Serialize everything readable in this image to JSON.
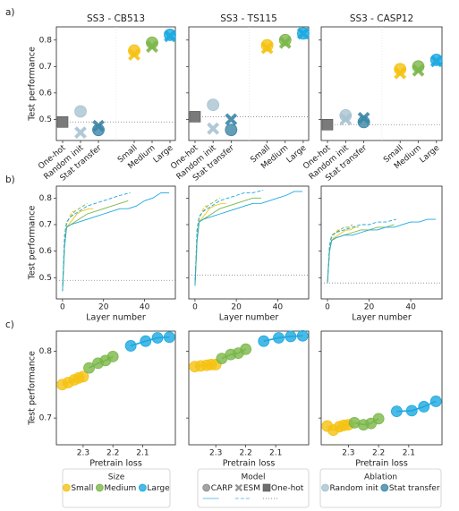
{
  "panel_labels": [
    "a)",
    "b)",
    "c)"
  ],
  "chart_data": [
    {
      "type": "scatter",
      "title": "SS3 - CB513",
      "ylabel": "Test performance",
      "categories": [
        "One-hot",
        "Random init",
        "Stat transfer",
        "Small",
        "Medium",
        "Large"
      ],
      "category_colors": [
        "#7a7a7a",
        "#a7c3d1",
        "#3b86a6",
        "#f5c211",
        "#7ab648",
        "#1ba8e0"
      ],
      "series": [
        {
          "marker": "square",
          "values": [
            0.49,
            null,
            null,
            null,
            null,
            null
          ]
        },
        {
          "marker": "circle",
          "values": [
            null,
            0.53,
            0.46,
            0.76,
            0.79,
            0.82
          ]
        },
        {
          "marker": "x",
          "values": [
            null,
            0.45,
            0.475,
            0.745,
            0.775,
            0.815
          ]
        }
      ],
      "ylim": [
        0.42,
        0.85
      ],
      "yticks": [
        0.5,
        0.6,
        0.7,
        0.8
      ]
    },
    {
      "type": "scatter",
      "title": "SS3 - TS115",
      "categories": [
        "One-hot",
        "Random init",
        "Stat transfer",
        "Small",
        "Medium",
        "Large"
      ],
      "category_colors": [
        "#7a7a7a",
        "#a7c3d1",
        "#3b86a6",
        "#f5c211",
        "#7ab648",
        "#1ba8e0"
      ],
      "series": [
        {
          "marker": "square",
          "values": [
            0.51,
            null,
            null,
            null,
            null,
            null
          ]
        },
        {
          "marker": "circle",
          "values": [
            null,
            0.555,
            0.46,
            0.78,
            0.8,
            0.825
          ]
        },
        {
          "marker": "x",
          "values": [
            null,
            0.465,
            0.5,
            0.77,
            0.79,
            0.825
          ]
        }
      ]
    },
    {
      "type": "scatter",
      "title": "SS3 - CASP12",
      "categories": [
        "One-hot",
        "Random init",
        "Stat transfer",
        "Small",
        "Medium",
        "Large"
      ],
      "category_colors": [
        "#7a7a7a",
        "#a7c3d1",
        "#3b86a6",
        "#f5c211",
        "#7ab648",
        "#1ba8e0"
      ],
      "series": [
        {
          "marker": "square",
          "values": [
            0.48,
            null,
            null,
            null,
            null,
            null
          ]
        },
        {
          "marker": "circle",
          "values": [
            null,
            0.515,
            0.49,
            0.69,
            0.7,
            0.725
          ]
        },
        {
          "marker": "x",
          "values": [
            null,
            0.5,
            0.505,
            0.675,
            0.685,
            0.72
          ]
        }
      ]
    },
    {
      "type": "line",
      "ylabel": "Test performance",
      "xlabel": "Layer number",
      "xlim": [
        -3,
        55
      ],
      "xticks": [
        0,
        20,
        40
      ],
      "ylim": [
        0.42,
        0.845
      ],
      "yticks": [
        0.5,
        0.6,
        0.7,
        0.8
      ],
      "series": [
        {
          "color": "#f5c211",
          "style": "solid",
          "x": [
            0,
            1,
            2,
            3,
            5,
            7,
            9,
            11,
            13,
            15
          ],
          "values": [
            0.45,
            0.62,
            0.69,
            0.7,
            0.72,
            0.74,
            0.75,
            0.755,
            0.76,
            0.76
          ]
        },
        {
          "color": "#7ab648",
          "style": "solid",
          "x": [
            0,
            1,
            2,
            4,
            8,
            12,
            16,
            20,
            24,
            28,
            32
          ],
          "values": [
            0.45,
            0.62,
            0.69,
            0.7,
            0.72,
            0.74,
            0.75,
            0.76,
            0.77,
            0.78,
            0.79
          ]
        },
        {
          "color": "#1ba8e0",
          "style": "solid",
          "x": [
            0,
            1,
            2,
            4,
            8,
            12,
            16,
            20,
            24,
            28,
            32,
            36,
            40,
            44,
            48,
            52
          ],
          "values": [
            0.45,
            0.62,
            0.69,
            0.7,
            0.71,
            0.72,
            0.73,
            0.74,
            0.75,
            0.76,
            0.76,
            0.77,
            0.79,
            0.8,
            0.82,
            0.82
          ]
        },
        {
          "color": "#f5c211",
          "style": "dashed",
          "x": [
            0,
            1,
            2,
            3,
            4,
            5,
            6
          ],
          "values": [
            0.45,
            0.65,
            0.7,
            0.72,
            0.74,
            0.75,
            0.75
          ]
        },
        {
          "color": "#7ab648",
          "style": "dashed",
          "x": [
            0,
            1,
            2,
            4,
            6,
            8,
            10,
            12
          ],
          "values": [
            0.45,
            0.66,
            0.71,
            0.73,
            0.75,
            0.76,
            0.77,
            0.78
          ]
        },
        {
          "color": "#1ba8e0",
          "style": "dashed",
          "x": [
            0,
            1,
            2,
            4,
            8,
            12,
            16,
            20,
            24,
            28,
            33
          ],
          "values": [
            0.45,
            0.66,
            0.71,
            0.73,
            0.75,
            0.77,
            0.78,
            0.79,
            0.8,
            0.81,
            0.82
          ]
        }
      ]
    },
    {
      "type": "line",
      "xlabel": "Layer number",
      "xlim": [
        -3,
        55
      ],
      "xticks": [
        0,
        20,
        40
      ],
      "series": [
        {
          "color": "#f5c211",
          "style": "solid",
          "x": [
            0,
            1,
            2,
            3,
            5,
            7,
            9,
            11,
            13,
            15
          ],
          "values": [
            0.47,
            0.64,
            0.71,
            0.72,
            0.74,
            0.76,
            0.77,
            0.775,
            0.78,
            0.78
          ]
        },
        {
          "color": "#7ab648",
          "style": "solid",
          "x": [
            0,
            1,
            2,
            4,
            8,
            12,
            16,
            20,
            24,
            28,
            32
          ],
          "values": [
            0.47,
            0.64,
            0.71,
            0.72,
            0.74,
            0.76,
            0.77,
            0.78,
            0.79,
            0.8,
            0.8
          ]
        },
        {
          "color": "#1ba8e0",
          "style": "solid",
          "x": [
            0,
            1,
            2,
            4,
            8,
            12,
            16,
            20,
            24,
            28,
            32,
            36,
            40,
            44,
            48,
            52
          ],
          "values": [
            0.47,
            0.64,
            0.71,
            0.72,
            0.73,
            0.74,
            0.75,
            0.76,
            0.77,
            0.78,
            0.78,
            0.79,
            0.8,
            0.81,
            0.825,
            0.825
          ]
        },
        {
          "color": "#f5c211",
          "style": "dashed",
          "x": [
            0,
            1,
            2,
            3,
            4,
            5,
            6
          ],
          "values": [
            0.47,
            0.67,
            0.72,
            0.74,
            0.76,
            0.77,
            0.77
          ]
        },
        {
          "color": "#7ab648",
          "style": "dashed",
          "x": [
            0,
            1,
            2,
            4,
            6,
            8,
            10,
            12
          ],
          "values": [
            0.47,
            0.68,
            0.73,
            0.75,
            0.77,
            0.78,
            0.79,
            0.8
          ]
        },
        {
          "color": "#1ba8e0",
          "style": "dashed",
          "x": [
            0,
            1,
            2,
            4,
            8,
            12,
            16,
            20,
            24,
            28,
            33
          ],
          "values": [
            0.47,
            0.68,
            0.73,
            0.75,
            0.77,
            0.79,
            0.8,
            0.81,
            0.82,
            0.82,
            0.83
          ]
        }
      ]
    },
    {
      "type": "line",
      "xlabel": "Layer number",
      "xlim": [
        -3,
        55
      ],
      "xticks": [
        0,
        20,
        40
      ],
      "series": [
        {
          "color": "#f5c211",
          "style": "solid",
          "x": [
            0,
            1,
            2,
            3,
            5,
            7,
            9,
            11,
            13,
            15
          ],
          "values": [
            0.48,
            0.6,
            0.64,
            0.65,
            0.66,
            0.67,
            0.68,
            0.68,
            0.69,
            0.69
          ]
        },
        {
          "color": "#7ab648",
          "style": "solid",
          "x": [
            0,
            1,
            2,
            4,
            8,
            12,
            16,
            20,
            24,
            28,
            32
          ],
          "values": [
            0.48,
            0.6,
            0.64,
            0.65,
            0.66,
            0.67,
            0.68,
            0.68,
            0.69,
            0.69,
            0.7
          ]
        },
        {
          "color": "#1ba8e0",
          "style": "solid",
          "x": [
            0,
            1,
            2,
            4,
            8,
            12,
            16,
            20,
            24,
            28,
            32,
            36,
            40,
            44,
            48,
            52
          ],
          "values": [
            0.48,
            0.6,
            0.64,
            0.65,
            0.66,
            0.66,
            0.67,
            0.68,
            0.68,
            0.69,
            0.69,
            0.7,
            0.71,
            0.71,
            0.72,
            0.72
          ]
        },
        {
          "color": "#f5c211",
          "style": "dashed",
          "x": [
            0,
            1,
            2,
            3,
            4,
            5,
            6
          ],
          "values": [
            0.48,
            0.62,
            0.65,
            0.66,
            0.67,
            0.68,
            0.68
          ]
        },
        {
          "color": "#7ab648",
          "style": "dashed",
          "x": [
            0,
            1,
            2,
            4,
            6,
            8,
            10,
            12
          ],
          "values": [
            0.48,
            0.62,
            0.66,
            0.67,
            0.68,
            0.69,
            0.69,
            0.7
          ]
        },
        {
          "color": "#1ba8e0",
          "style": "dashed",
          "x": [
            0,
            1,
            2,
            4,
            8,
            12,
            16,
            20,
            24,
            28,
            33
          ],
          "values": [
            0.48,
            0.62,
            0.66,
            0.67,
            0.68,
            0.69,
            0.7,
            0.7,
            0.71,
            0.71,
            0.72
          ]
        }
      ]
    },
    {
      "type": "line",
      "markers": true,
      "ylabel": "Test performance",
      "xlabel": "Pretrain loss",
      "xlim": [
        2.39,
        1.99
      ],
      "xticks": [
        2.3,
        2.2,
        2.1
      ],
      "ylim": [
        0.66,
        0.83
      ],
      "yticks": [
        0.7,
        0.8
      ],
      "series": [
        {
          "color": "#f5c211",
          "x": [
            2.37,
            2.35,
            2.33,
            2.315,
            2.3
          ],
          "values": [
            0.75,
            0.753,
            0.757,
            0.76,
            0.762
          ]
        },
        {
          "color": "#7ab648",
          "x": [
            2.28,
            2.25,
            2.225,
            2.2
          ],
          "values": [
            0.775,
            0.782,
            0.786,
            0.792
          ]
        },
        {
          "color": "#1ba8e0",
          "x": [
            2.14,
            2.09,
            2.05,
            2.01
          ],
          "values": [
            0.808,
            0.815,
            0.82,
            0.821
          ]
        }
      ]
    },
    {
      "type": "line",
      "markers": true,
      "xlabel": "Pretrain loss",
      "xlim": [
        2.39,
        1.99
      ],
      "xticks": [
        2.3,
        2.2,
        2.1
      ],
      "series": [
        {
          "color": "#f5c211",
          "x": [
            2.37,
            2.35,
            2.33,
            2.315,
            2.3
          ],
          "values": [
            0.777,
            0.778,
            0.779,
            0.78,
            0.78
          ]
        },
        {
          "color": "#7ab648",
          "x": [
            2.28,
            2.25,
            2.225,
            2.2
          ],
          "values": [
            0.789,
            0.795,
            0.797,
            0.803
          ]
        },
        {
          "color": "#1ba8e0",
          "x": [
            2.14,
            2.09,
            2.05,
            2.01
          ],
          "values": [
            0.815,
            0.82,
            0.822,
            0.823
          ]
        }
      ]
    },
    {
      "type": "line",
      "markers": true,
      "xlabel": "Pretrain loss",
      "xlim": [
        2.39,
        1.99
      ],
      "xticks": [
        2.3,
        2.2,
        2.1
      ],
      "series": [
        {
          "color": "#f5c211",
          "x": [
            2.37,
            2.35,
            2.33,
            2.315,
            2.3
          ],
          "values": [
            0.688,
            0.682,
            0.687,
            0.689,
            0.69
          ]
        },
        {
          "color": "#7ab648",
          "x": [
            2.28,
            2.25,
            2.225,
            2.2
          ],
          "values": [
            0.693,
            0.69,
            0.692,
            0.699
          ]
        },
        {
          "color": "#1ba8e0",
          "x": [
            2.14,
            2.09,
            2.05,
            2.01
          ],
          "values": [
            0.71,
            0.711,
            0.717,
            0.725
          ]
        }
      ]
    }
  ],
  "legends": [
    {
      "title": "Size",
      "items": [
        {
          "label": "Small",
          "color": "#f5c211",
          "marker": "circle"
        },
        {
          "label": "Medium",
          "color": "#7ab648",
          "marker": "circle"
        },
        {
          "label": "Large",
          "color": "#1ba8e0",
          "marker": "circle"
        }
      ]
    },
    {
      "title": "Model",
      "items": [
        {
          "label": "CARP",
          "color": "#8c8c8c",
          "marker": "circle",
          "line": "solid",
          "line_color": "#6cc0ea"
        },
        {
          "label": "ESM",
          "color": "#8c8c8c",
          "marker": "x",
          "line": "dashed",
          "line_color": "#6cc0ea"
        },
        {
          "label": "One-hot",
          "color": "#6f6f6f",
          "marker": "square",
          "line": "dotted",
          "line_color": "#888888"
        }
      ]
    },
    {
      "title": "Ablation",
      "items": [
        {
          "label": "Random init",
          "color": "#a7c3d1",
          "marker": "circle"
        },
        {
          "label": "Stat transfer",
          "color": "#3b86a6",
          "marker": "circle"
        }
      ]
    }
  ]
}
